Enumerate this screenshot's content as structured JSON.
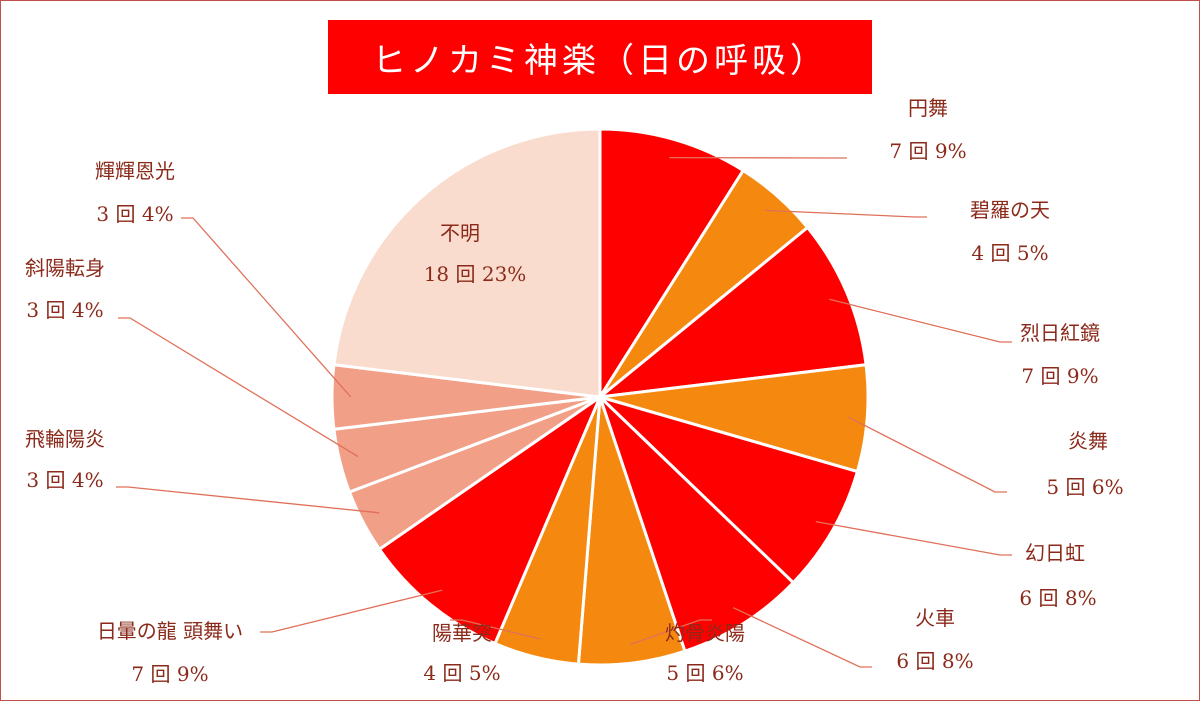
{
  "chart_data": {
    "type": "pie",
    "title": "ヒノカミ神楽（日の呼吸）",
    "unit": "回",
    "slices": [
      {
        "name": "円舞",
        "value": 7,
        "percent": "9%",
        "color": "#ff0000"
      },
      {
        "name": "碧羅の天",
        "value": 4,
        "percent": "5%",
        "color": "#f5890f"
      },
      {
        "name": "烈日紅鏡",
        "value": 7,
        "percent": "9%",
        "color": "#ff0000"
      },
      {
        "name": "炎舞",
        "value": 5,
        "percent": "6%",
        "color": "#f5890f"
      },
      {
        "name": "幻日虹",
        "value": 6,
        "percent": "8%",
        "color": "#ff0000"
      },
      {
        "name": "火車",
        "value": 6,
        "percent": "8%",
        "color": "#ff0000"
      },
      {
        "name": "灼骨炎陽",
        "value": 5,
        "percent": "6%",
        "color": "#f5890f"
      },
      {
        "name": "陽華突",
        "value": 4,
        "percent": "5%",
        "color": "#f5890f"
      },
      {
        "name": "日暈の龍 頭舞い",
        "value": 7,
        "percent": "9%",
        "color": "#ff0000"
      },
      {
        "name": "飛輪陽炎",
        "value": 3,
        "percent": "4%",
        "color": "#f29f87"
      },
      {
        "name": "斜陽転身",
        "value": 3,
        "percent": "4%",
        "color": "#f29f87"
      },
      {
        "name": "輝輝恩光",
        "value": 3,
        "percent": "4%",
        "color": "#f29f87"
      },
      {
        "name": "不明",
        "value": 18,
        "percent": "23%",
        "color": "#f9dccd"
      }
    ]
  }
}
